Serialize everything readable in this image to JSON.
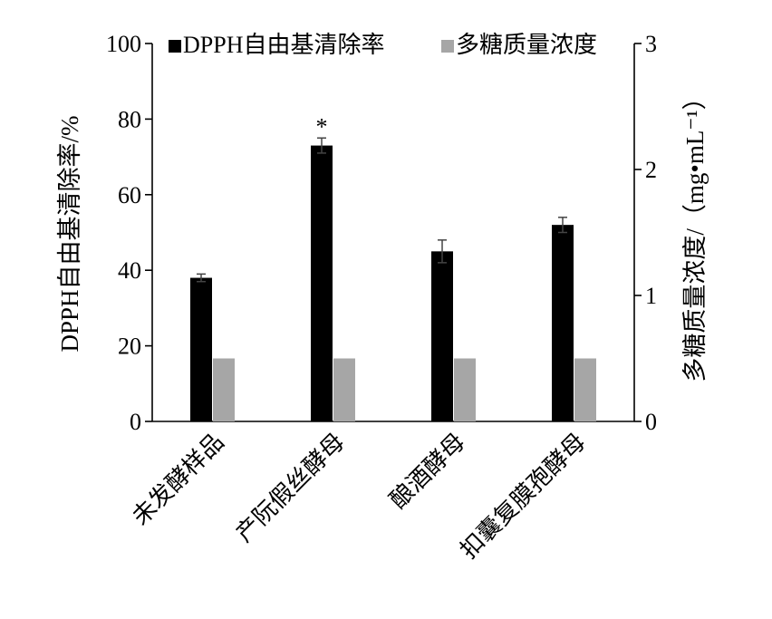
{
  "chart_data": {
    "type": "bar",
    "categories": [
      "未发酵样品",
      "产阮假丝酵母",
      "酿酒酵母",
      "扣囊复膜孢酵母"
    ],
    "series": [
      {
        "name": "DPPH自由基清除率",
        "axis": "left",
        "color": "#000000",
        "values": [
          38,
          73,
          45,
          52
        ],
        "errors": [
          1,
          2,
          3,
          2
        ],
        "annotations": [
          "",
          "*",
          "",
          ""
        ]
      },
      {
        "name": "多糖质量浓度",
        "axis": "right",
        "color": "#a6a6a6",
        "values": [
          0.5,
          0.5,
          0.5,
          0.5
        ]
      }
    ],
    "ylabel": "DPPH自由基清除率/%",
    "ylabel_right": "多糖质量浓度/（mg•mL⁻¹）",
    "ylim": [
      0,
      100
    ],
    "ylim_right": [
      0,
      3
    ],
    "yticks": [
      "0",
      "20",
      "40",
      "60",
      "80",
      "100"
    ],
    "yticks_right": [
      "0",
      "1",
      "2",
      "3"
    ],
    "grid": false,
    "legend_position": "top"
  }
}
